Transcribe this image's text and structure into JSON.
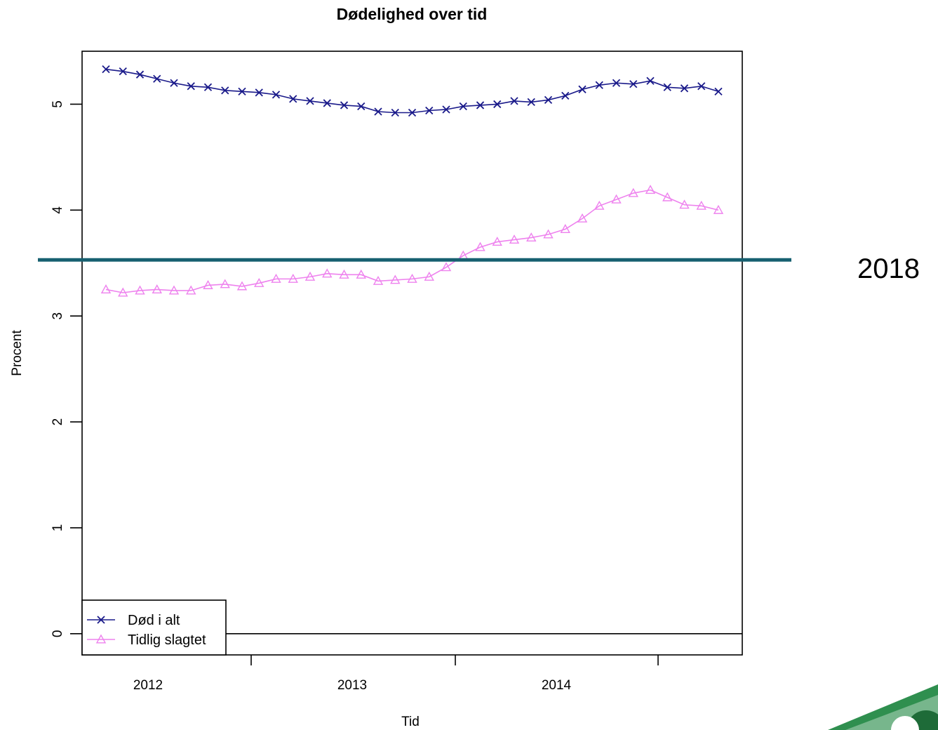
{
  "chart_data": {
    "type": "line",
    "title": "Dødelighed over tid",
    "xlabel": "Tid",
    "ylabel": "Procent",
    "ylim": [
      -0.2,
      5.5
    ],
    "yticks": [
      0,
      1,
      2,
      3,
      4,
      5
    ],
    "x_period_labels": [
      "2012",
      "2013",
      "2014"
    ],
    "grid": false,
    "legend_position": "bottom-left",
    "reference_line": {
      "y": 3.53,
      "color": "#176070"
    },
    "annotation": "2018",
    "series": [
      {
        "name": "Død i alt",
        "color": "#1a1a8a",
        "marker": "x",
        "values": [
          5.33,
          5.31,
          5.28,
          5.24,
          5.2,
          5.17,
          5.16,
          5.13,
          5.12,
          5.11,
          5.09,
          5.05,
          5.03,
          5.01,
          4.99,
          4.98,
          4.93,
          4.92,
          4.92,
          4.94,
          4.95,
          4.98,
          4.99,
          5.0,
          5.03,
          5.02,
          5.04,
          5.08,
          5.14,
          5.18,
          5.2,
          5.19,
          5.22,
          5.16,
          5.15,
          5.17,
          5.12
        ]
      },
      {
        "name": "Tidlig slagtet",
        "color": "#ee82ee",
        "marker": "triangle",
        "values": [
          3.25,
          3.22,
          3.24,
          3.25,
          3.24,
          3.24,
          3.29,
          3.3,
          3.28,
          3.31,
          3.35,
          3.35,
          3.37,
          3.4,
          3.39,
          3.39,
          3.33,
          3.34,
          3.35,
          3.37,
          3.46,
          3.57,
          3.65,
          3.7,
          3.72,
          3.74,
          3.77,
          3.82,
          3.92,
          4.04,
          4.1,
          4.16,
          4.19,
          4.12,
          4.05,
          4.04,
          4.0
        ]
      }
    ]
  }
}
